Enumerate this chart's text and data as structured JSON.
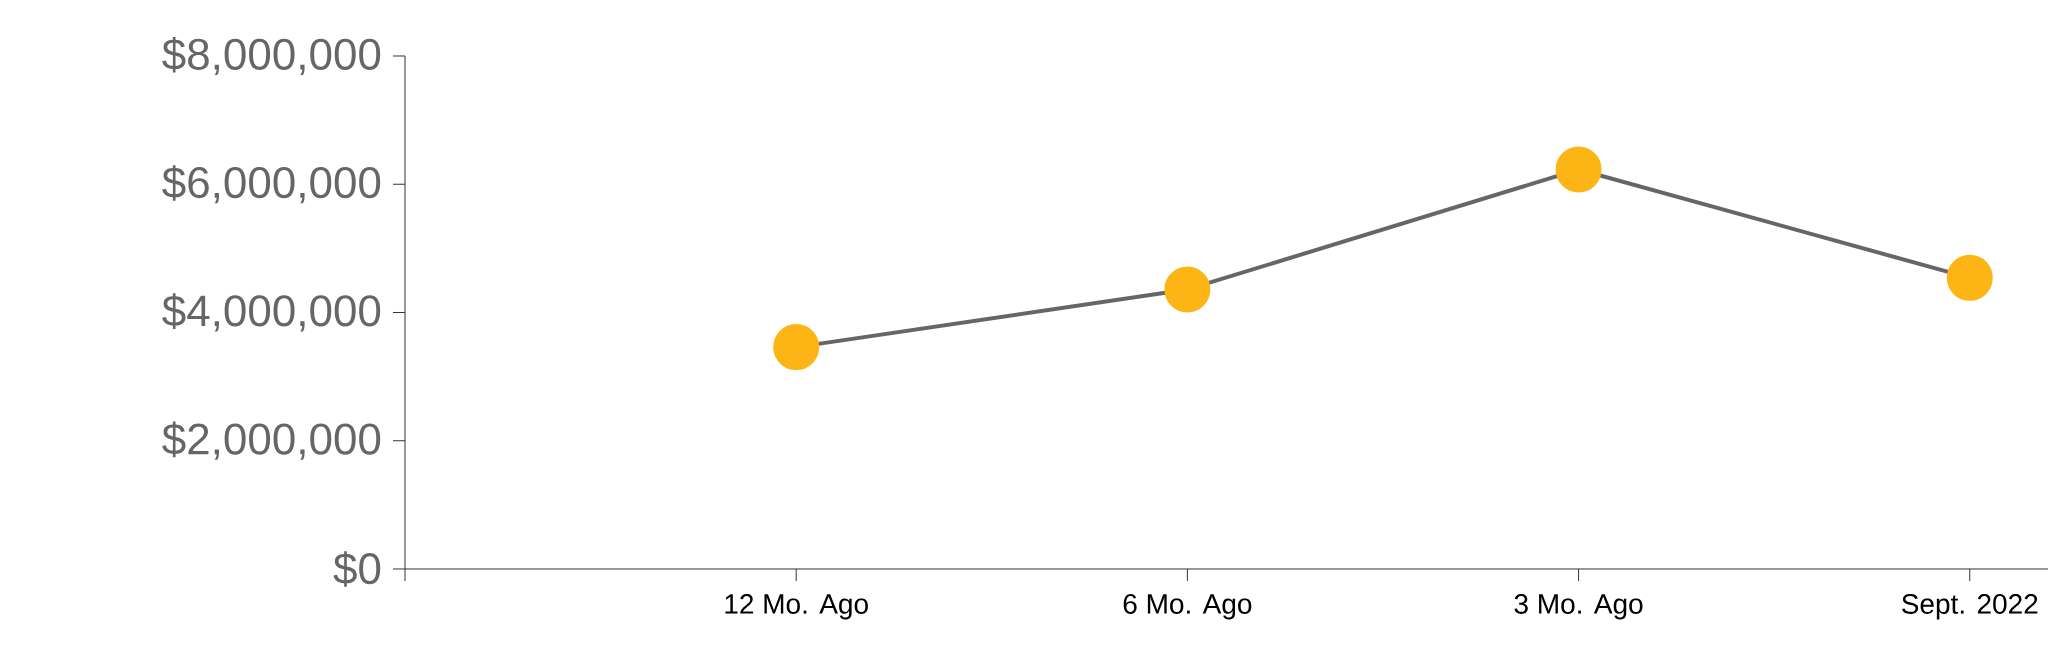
{
  "chart_data": {
    "type": "line",
    "categories": [
      null,
      "12 Mo. Ago",
      "6 Mo. Ago",
      "3 Mo. Ago",
      "Sept. 2022"
    ],
    "series": [
      {
        "color": "#fdb515",
        "values": [
          null,
          3460000,
          4360000,
          6230000,
          4540000
        ]
      }
    ],
    "ylim": [
      0,
      8000000
    ],
    "yticks": [
      {
        "value": 0,
        "label": "$0"
      },
      {
        "value": 2000000,
        "label": "$2,000,000"
      },
      {
        "value": 4000000,
        "label": "$4,000,000"
      },
      {
        "value": 6000000,
        "label": "$6,000,000"
      },
      {
        "value": 8000000,
        "label": "$8,000,000"
      }
    ],
    "marker": "circle",
    "line_style": "solid"
  }
}
